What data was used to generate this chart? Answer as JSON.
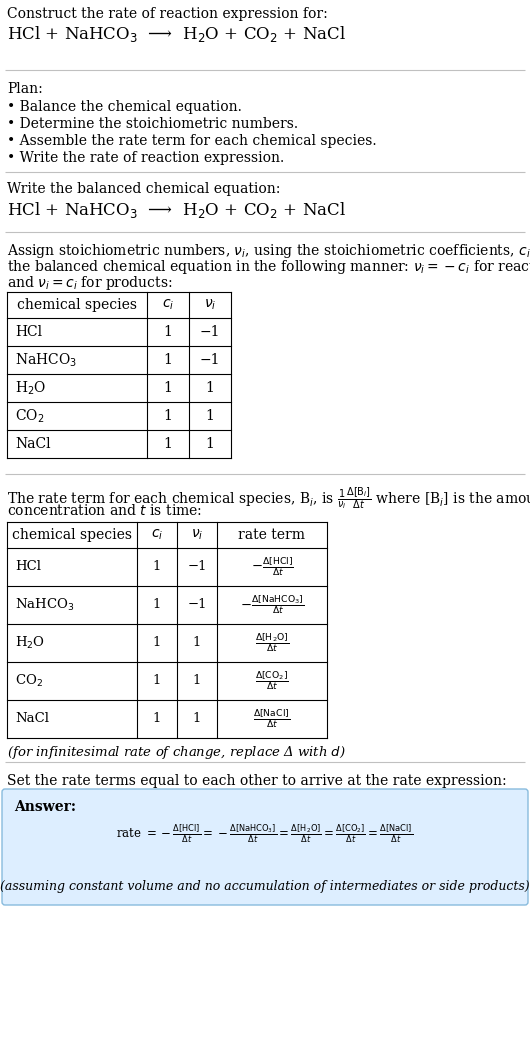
{
  "bg_color": "#ffffff",
  "text_color": "#000000",
  "answer_bg": "#ddeeff",
  "answer_border": "#88bbdd",
  "separator_color": "#bbbbbb",
  "sections": {
    "title_line1": "Construct the rate of reaction expression for:",
    "title_line2": "HCl + NaHCO$_3$  ⟶  H$_2$O + CO$_2$ + NaCl",
    "plan_header": "Plan:",
    "plan_items": [
      "• Balance the chemical equation.",
      "• Determine the stoichiometric numbers.",
      "• Assemble the rate term for each chemical species.",
      "• Write the rate of reaction expression."
    ],
    "balanced_header": "Write the balanced chemical equation:",
    "balanced_eq": "HCl + NaHCO$_3$  ⟶  H$_2$O + CO$_2$ + NaCl",
    "stoich_intro_1": "Assign stoichiometric numbers, $\\nu_i$, using the stoichiometric coefficients, $c_i$, from",
    "stoich_intro_2": "the balanced chemical equation in the following manner: $\\nu_i = -c_i$ for reactants",
    "stoich_intro_3": "and $\\nu_i = c_i$ for products:",
    "table1_col_headers": [
      "chemical species",
      "$c_i$",
      "$\\nu_i$"
    ],
    "table1_rows": [
      [
        "HCl",
        "1",
        "−1"
      ],
      [
        "NaHCO$_3$",
        "1",
        "−1"
      ],
      [
        "H$_2$O",
        "1",
        "1"
      ],
      [
        "CO$_2$",
        "1",
        "1"
      ],
      [
        "NaCl",
        "1",
        "1"
      ]
    ],
    "rate_intro_1": "The rate term for each chemical species, B$_i$, is $\\frac{1}{\\nu_i}\\frac{\\Delta[\\mathrm{B}_i]}{\\Delta t}$ where [B$_i$] is the amount",
    "rate_intro_2": "concentration and $t$ is time:",
    "table2_col_headers": [
      "chemical species",
      "$c_i$",
      "$\\nu_i$",
      "rate term"
    ],
    "table2_rows": [
      [
        "HCl",
        "1",
        "−1",
        "$-\\frac{\\Delta[\\mathrm{HCl}]}{\\Delta t}$"
      ],
      [
        "NaHCO$_3$",
        "1",
        "−1",
        "$-\\frac{\\Delta[\\mathrm{NaHCO_3}]}{\\Delta t}$"
      ],
      [
        "H$_2$O",
        "1",
        "1",
        "$\\frac{\\Delta[\\mathrm{H_2O}]}{\\Delta t}$"
      ],
      [
        "CO$_2$",
        "1",
        "1",
        "$\\frac{\\Delta[\\mathrm{CO_2}]}{\\Delta t}$"
      ],
      [
        "NaCl",
        "1",
        "1",
        "$\\frac{\\Delta[\\mathrm{NaCl}]}{\\Delta t}$"
      ]
    ],
    "infinitesimal_note": "(for infinitesimal rate of change, replace Δ with $d$)",
    "set_rate_text": "Set the rate terms equal to each other to arrive at the rate expression:",
    "answer_label": "Answer:",
    "answer_eq": "rate $= -\\frac{\\Delta[\\mathrm{HCl}]}{\\Delta t} = -\\frac{\\Delta[\\mathrm{NaHCO_3}]}{\\Delta t} = \\frac{\\Delta[\\mathrm{H_2O}]}{\\Delta t} = \\frac{\\Delta[\\mathrm{CO_2}]}{\\Delta t} = \\frac{\\Delta[\\mathrm{NaCl}]}{\\Delta t}$",
    "answer_note": "(assuming constant volume and no accumulation of intermediates or side products)"
  }
}
